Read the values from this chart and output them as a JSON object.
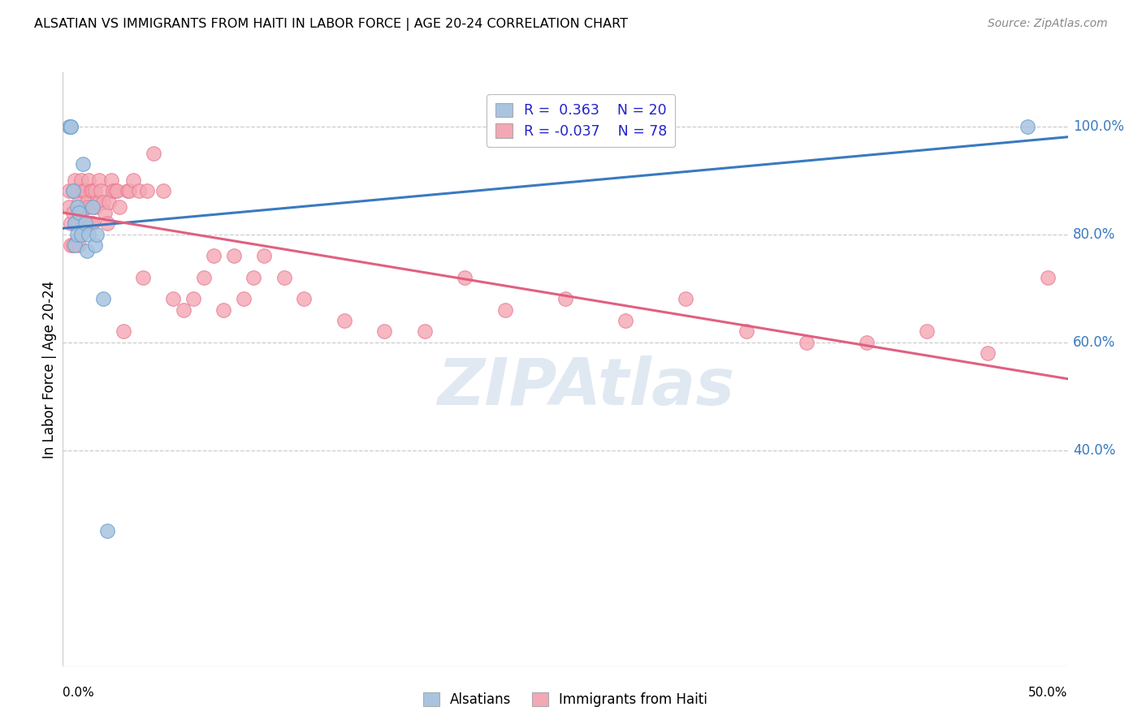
{
  "title": "ALSATIAN VS IMMIGRANTS FROM HAITI IN LABOR FORCE | AGE 20-24 CORRELATION CHART",
  "source": "Source: ZipAtlas.com",
  "ylabel": "In Labor Force | Age 20-24",
  "watermark": "ZIPAtlas",
  "blue_fill": "#a8c4e0",
  "pink_fill": "#f4a7b4",
  "blue_edge": "#6aa0cc",
  "pink_edge": "#e87a8e",
  "blue_line": "#3a7abf",
  "pink_line": "#e06080",
  "xlim": [
    0.0,
    0.5
  ],
  "ylim": [
    0.0,
    1.1
  ],
  "ytick_vals": [
    1.0,
    0.8,
    0.6,
    0.4
  ],
  "ytick_labels": [
    "100.0%",
    "80.0%",
    "60.0%",
    "40.0%"
  ],
  "alsatian_x": [
    0.003,
    0.004,
    0.004,
    0.005,
    0.006,
    0.006,
    0.007,
    0.007,
    0.008,
    0.009,
    0.01,
    0.011,
    0.012,
    0.013,
    0.015,
    0.016,
    0.017,
    0.02,
    0.022,
    0.48
  ],
  "alsatian_y": [
    1.0,
    1.0,
    1.0,
    0.88,
    0.82,
    0.78,
    0.85,
    0.8,
    0.84,
    0.8,
    0.93,
    0.82,
    0.77,
    0.8,
    0.85,
    0.78,
    0.8,
    0.68,
    0.25,
    1.0
  ],
  "haiti_x": [
    0.003,
    0.003,
    0.004,
    0.004,
    0.005,
    0.005,
    0.005,
    0.006,
    0.006,
    0.007,
    0.007,
    0.007,
    0.008,
    0.008,
    0.009,
    0.009,
    0.01,
    0.01,
    0.011,
    0.011,
    0.012,
    0.012,
    0.013,
    0.013,
    0.014,
    0.014,
    0.015,
    0.015,
    0.016,
    0.016,
    0.017,
    0.018,
    0.018,
    0.019,
    0.02,
    0.021,
    0.022,
    0.023,
    0.024,
    0.025,
    0.026,
    0.027,
    0.028,
    0.03,
    0.032,
    0.033,
    0.035,
    0.038,
    0.04,
    0.042,
    0.045,
    0.05,
    0.055,
    0.06,
    0.065,
    0.07,
    0.075,
    0.08,
    0.085,
    0.09,
    0.095,
    0.1,
    0.11,
    0.12,
    0.14,
    0.16,
    0.18,
    0.2,
    0.22,
    0.25,
    0.28,
    0.31,
    0.34,
    0.37,
    0.4,
    0.43,
    0.46,
    0.49
  ],
  "haiti_y": [
    0.88,
    0.85,
    0.82,
    0.78,
    0.88,
    0.84,
    0.78,
    0.9,
    0.82,
    0.88,
    0.82,
    0.79,
    0.86,
    0.78,
    0.9,
    0.84,
    0.88,
    0.82,
    0.88,
    0.85,
    0.86,
    0.82,
    0.9,
    0.85,
    0.88,
    0.82,
    0.88,
    0.82,
    0.88,
    0.85,
    0.86,
    0.9,
    0.86,
    0.88,
    0.86,
    0.84,
    0.82,
    0.86,
    0.9,
    0.88,
    0.88,
    0.88,
    0.85,
    0.62,
    0.88,
    0.88,
    0.9,
    0.88,
    0.72,
    0.88,
    0.95,
    0.88,
    0.68,
    0.66,
    0.68,
    0.72,
    0.76,
    0.66,
    0.76,
    0.68,
    0.72,
    0.76,
    0.72,
    0.68,
    0.64,
    0.62,
    0.62,
    0.72,
    0.66,
    0.68,
    0.64,
    0.68,
    0.62,
    0.6,
    0.6,
    0.62,
    0.58,
    0.72
  ]
}
